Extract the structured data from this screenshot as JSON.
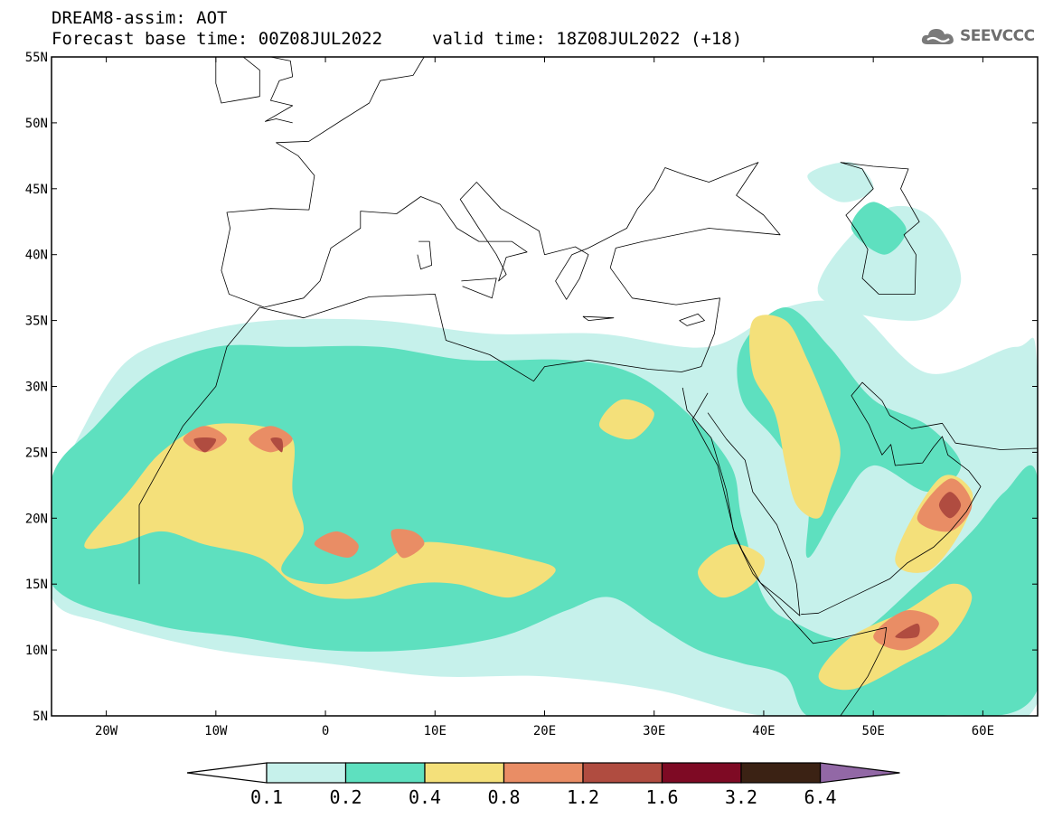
{
  "header": {
    "line1": "DREAM8-assim: AOT",
    "line2": "Forecast base time: 00Z08JUL2022",
    "valid": "valid time: 18Z08JUL2022 (+18)"
  },
  "logo": {
    "text": "SEEVCCC",
    "icon": "cloud-icon"
  },
  "map": {
    "lon_range": [
      -25,
      65
    ],
    "lat_range": [
      5,
      55
    ],
    "lon_ticks": [
      {
        "value": -20,
        "label": "20W"
      },
      {
        "value": -10,
        "label": "10W"
      },
      {
        "value": 0,
        "label": "0"
      },
      {
        "value": 10,
        "label": "10E"
      },
      {
        "value": 20,
        "label": "20E"
      },
      {
        "value": 30,
        "label": "30E"
      },
      {
        "value": 40,
        "label": "40E"
      },
      {
        "value": 50,
        "label": "50E"
      },
      {
        "value": 60,
        "label": "60E"
      }
    ],
    "lat_ticks": [
      {
        "value": 55,
        "label": "55N"
      },
      {
        "value": 50,
        "label": "50N"
      },
      {
        "value": 45,
        "label": "45N"
      },
      {
        "value": 40,
        "label": "40N"
      },
      {
        "value": 35,
        "label": "35N"
      },
      {
        "value": 30,
        "label": "30N"
      },
      {
        "value": 25,
        "label": "25N"
      },
      {
        "value": 20,
        "label": "20N"
      },
      {
        "value": 15,
        "label": "15N"
      },
      {
        "value": 10,
        "label": "10N"
      },
      {
        "value": 5,
        "label": "5N"
      }
    ]
  },
  "colorbar": {
    "labels": [
      "0.1",
      "0.2",
      "0.4",
      "0.8",
      "1.2",
      "1.6",
      "3.2",
      "6.4"
    ],
    "colors": [
      "#c6f1eb",
      "#5ee0bf",
      "#f4e07a",
      "#e98d65",
      "#b04c40",
      "#7e0a24",
      "#3b2214"
    ],
    "under_color": "#ffffff",
    "over_color": "#9268a6"
  },
  "chart_data": {
    "type": "heatmap",
    "variable": "AOT",
    "levels": [
      0.1,
      0.2,
      0.4,
      0.8,
      1.2,
      1.6,
      3.2,
      6.4
    ],
    "features": [
      {
        "level": 0.1,
        "rings": [
          [
            [
              -25,
              21
            ],
            [
              -22,
              27
            ],
            [
              -18,
              32
            ],
            [
              -12,
              34
            ],
            [
              -5,
              35
            ],
            [
              5,
              35
            ],
            [
              15,
              34
            ],
            [
              25,
              34
            ],
            [
              35,
              33
            ],
            [
              42,
              36
            ],
            [
              48,
              36
            ],
            [
              55,
              31
            ],
            [
              63,
              33
            ],
            [
              65,
              31
            ],
            [
              65,
              6
            ],
            [
              50,
              5
            ],
            [
              40,
              5
            ],
            [
              30,
              7
            ],
            [
              20,
              8
            ],
            [
              10,
              8
            ],
            [
              0,
              9
            ],
            [
              -10,
              10
            ],
            [
              -20,
              12
            ],
            [
              -25,
              14
            ]
          ],
          [
            [
              45,
              37
            ],
            [
              50,
              43
            ],
            [
              55,
              43
            ],
            [
              58,
              38
            ],
            [
              54,
              35
            ]
          ],
          [
            [
              44,
              46
            ],
            [
              48,
              47
            ],
            [
              50,
              45
            ],
            [
              47,
              44
            ]
          ]
        ]
      },
      {
        "level": 0.2,
        "rings": [
          [
            [
              -25,
              23
            ],
            [
              -21,
              27
            ],
            [
              -16,
              31
            ],
            [
              -10,
              33
            ],
            [
              -3,
              33
            ],
            [
              5,
              33
            ],
            [
              13,
              32
            ],
            [
              22,
              32
            ],
            [
              28,
              31
            ],
            [
              33,
              28
            ],
            [
              37,
              24
            ],
            [
              38,
              20
            ],
            [
              40,
              14
            ],
            [
              43,
              12
            ],
            [
              48,
              11
            ],
            [
              54,
              15
            ],
            [
              59,
              19
            ],
            [
              62,
              22
            ],
            [
              65,
              23
            ],
            [
              65,
              7
            ],
            [
              56,
              5
            ],
            [
              49,
              5
            ],
            [
              44,
              5
            ],
            [
              42,
              8
            ],
            [
              38,
              9
            ],
            [
              34,
              10
            ],
            [
              30,
              12
            ],
            [
              26,
              14
            ],
            [
              22,
              13
            ],
            [
              16,
              11
            ],
            [
              8,
              10
            ],
            [
              0,
              10
            ],
            [
              -8,
              11
            ],
            [
              -16,
              12
            ],
            [
              -25,
              15
            ]
          ],
          [
            [
              38,
              33
            ],
            [
              42,
              36
            ],
            [
              46,
              33
            ],
            [
              50,
              29
            ],
            [
              55,
              27
            ],
            [
              58,
              24
            ],
            [
              55,
              22
            ],
            [
              50,
              24
            ],
            [
              47,
              21
            ],
            [
              44,
              17
            ],
            [
              44,
              22
            ],
            [
              41,
              26
            ],
            [
              38,
              29
            ]
          ],
          [
            [
              48,
              42
            ],
            [
              50,
              44
            ],
            [
              53,
              42
            ],
            [
              51,
              40
            ]
          ]
        ]
      },
      {
        "level": 0.4,
        "rings": [
          [
            [
              -22,
              18
            ],
            [
              -18,
              22
            ],
            [
              -15,
              25
            ],
            [
              -11,
              27
            ],
            [
              -6,
              27
            ],
            [
              -3,
              26
            ],
            [
              -3,
              22
            ],
            [
              -2,
              19
            ],
            [
              -4,
              16
            ],
            [
              0,
              15
            ],
            [
              4,
              16
            ],
            [
              8,
              18
            ],
            [
              12,
              18
            ],
            [
              18,
              17
            ],
            [
              21,
              16
            ],
            [
              17,
              14
            ],
            [
              12,
              15
            ],
            [
              8,
              15
            ],
            [
              4,
              14
            ],
            [
              0,
              14
            ],
            [
              -3,
              15
            ],
            [
              -6,
              17
            ],
            [
              -11,
              18
            ],
            [
              -15,
              19
            ],
            [
              -19,
              18
            ]
          ],
          [
            [
              39,
              35
            ],
            [
              42,
              35
            ],
            [
              44,
              32
            ],
            [
              46,
              28
            ],
            [
              47,
              25
            ],
            [
              46,
              22
            ],
            [
              45,
              20
            ],
            [
              43,
              21
            ],
            [
              42,
              24
            ],
            [
              41,
              28
            ],
            [
              39,
              31
            ]
          ],
          [
            [
              52,
              17
            ],
            [
              56,
              23
            ],
            [
              59,
              22
            ],
            [
              58,
              19
            ],
            [
              55,
              16
            ]
          ],
          [
            [
              45,
              8
            ],
            [
              48,
              11
            ],
            [
              53,
              13
            ],
            [
              57,
              15
            ],
            [
              59,
              14
            ],
            [
              57,
              11
            ],
            [
              53,
              9
            ],
            [
              48,
              7
            ]
          ],
          [
            [
              34,
              16
            ],
            [
              37,
              18
            ],
            [
              40,
              17
            ],
            [
              39,
              15
            ],
            [
              36,
              14
            ]
          ],
          [
            [
              25,
              27
            ],
            [
              27,
              29
            ],
            [
              30,
              28
            ],
            [
              28,
              26
            ]
          ]
        ]
      },
      {
        "level": 0.8,
        "rings": [
          [
            [
              -13,
              26
            ],
            [
              -11,
              27
            ],
            [
              -9,
              26
            ],
            [
              -11,
              25
            ]
          ],
          [
            [
              -7,
              26
            ],
            [
              -5,
              27
            ],
            [
              -3,
              26
            ],
            [
              -5,
              25
            ]
          ],
          [
            [
              -1,
              18
            ],
            [
              1,
              19
            ],
            [
              3,
              18
            ],
            [
              2,
              17
            ]
          ],
          [
            [
              6,
              19
            ],
            [
              8,
              19
            ],
            [
              9,
              18
            ],
            [
              7,
              17
            ]
          ],
          [
            [
              54,
              20
            ],
            [
              57,
              23
            ],
            [
              59,
              21
            ],
            [
              57,
              19
            ]
          ],
          [
            [
              50,
              11
            ],
            [
              53,
              13
            ],
            [
              56,
              12
            ],
            [
              53,
              10
            ]
          ]
        ]
      },
      {
        "level": 1.2,
        "rings": [
          [
            [
              -12,
              26
            ],
            [
              -10,
              26
            ],
            [
              -11,
              25
            ]
          ],
          [
            [
              -5,
              26
            ],
            [
              -4,
              26
            ],
            [
              -4,
              25
            ]
          ],
          [
            [
              56,
              21
            ],
            [
              57,
              22
            ],
            [
              58,
              21
            ],
            [
              57,
              20
            ]
          ],
          [
            [
              52,
              11
            ],
            [
              54,
              12
            ],
            [
              54,
              11
            ]
          ]
        ]
      }
    ],
    "title": "DREAM8-assim: AOT"
  }
}
